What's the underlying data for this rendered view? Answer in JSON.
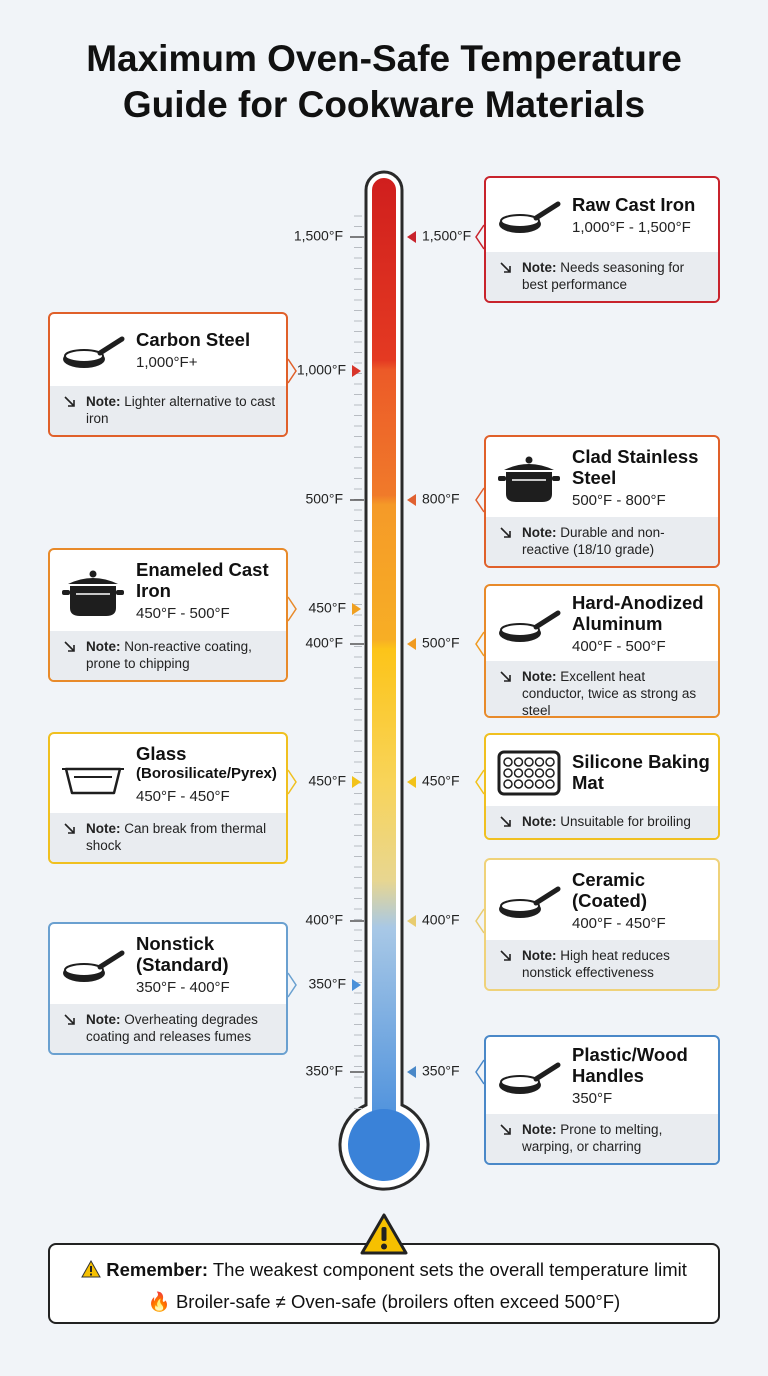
{
  "title": "Maximum Oven-Safe Temperature Guide for Cookware Materials",
  "left_labels": [
    {
      "label": "1,500°F"
    },
    {
      "label": "1,000°F",
      "color": "#d8352a"
    },
    {
      "label": "500°F"
    },
    {
      "label": "450°F",
      "color": "#f0a020"
    },
    {
      "label": "400°F"
    },
    {
      "label": "450°F",
      "color": "#f2c21a"
    },
    {
      "label": "400°F"
    },
    {
      "label": "350°F",
      "color": "#4a90d9"
    },
    {
      "label": "350°F"
    }
  ],
  "right_labels": [
    {
      "label": "1,500°F",
      "color": "#c8232c"
    },
    {
      "label": "800°F",
      "color": "#e06030"
    },
    {
      "label": "500°F",
      "color": "#f09a20"
    },
    {
      "label": "450°F",
      "color": "#f2c21a"
    },
    {
      "label": "400°F",
      "color": "#e8cc70"
    },
    {
      "label": "350°F",
      "color": "#4a88c8"
    }
  ],
  "cards": [
    {
      "name": "Raw Cast Iron",
      "range": "1,000°F - 1,500°F",
      "note_label": "Note:",
      "note": "Needs seasoning for best performance",
      "color": "#c8232c"
    },
    {
      "name": "Clad Stainless Steel",
      "range": "500°F - 800°F",
      "note_label": "Note:",
      "note": "Durable and non-reactive (18/10 grade)",
      "color": "#e0602a"
    },
    {
      "name": "Hard-Anodized Aluminum",
      "range": "400°F - 500°F",
      "note_label": "Note:",
      "note": "Excellent heat conductor, twice as strong as steel",
      "color": "#e88a2a"
    },
    {
      "name": "Silicone Baking Mat",
      "note_label": "Note:",
      "note": "Unsuitable for broiling",
      "color": "#f0c020"
    },
    {
      "name": "Ceramic (Coated)",
      "range": "400°F - 450°F",
      "note_label": "Note:",
      "note": "High heat reduces nonstick effectiveness",
      "color": "#efd27a"
    },
    {
      "name": "Plastic/Wood Handles",
      "range": "350°F",
      "note_label": "Note:",
      "note": "Prone to melting, warping, or charring",
      "color": "#4a88c8"
    },
    {
      "name": "Carbon Steel",
      "range": "1,000°F+",
      "note_label": "Note:",
      "note": "Lighter alternative to cast iron",
      "color": "#e0602a"
    },
    {
      "name": "Enameled Cast Iron",
      "range": "450°F - 500°F",
      "note_label": "Note:",
      "note": "Non-reactive coating, prone to chipping",
      "color": "#e88a2a"
    },
    {
      "name": "Glass",
      "subname": "(Borosilicate/Pyrex)",
      "range": "450°F - 450°F",
      "note_label": "Note:",
      "note": "Can break from thermal shock",
      "color": "#f0c020"
    },
    {
      "name": "Nonstick (Standard)",
      "range": "350°F - 400°F",
      "note_label": "Note:",
      "note": "Overheating degrades coating and releases fumes",
      "color": "#6aa0d0"
    }
  ],
  "footer": {
    "label": "Remember:",
    "text": "The weakest component sets the overall temperature limit",
    "line2": "🔥 Broiler-safe ≠ Oven-safe (broilers often exceed 500°F)"
  }
}
